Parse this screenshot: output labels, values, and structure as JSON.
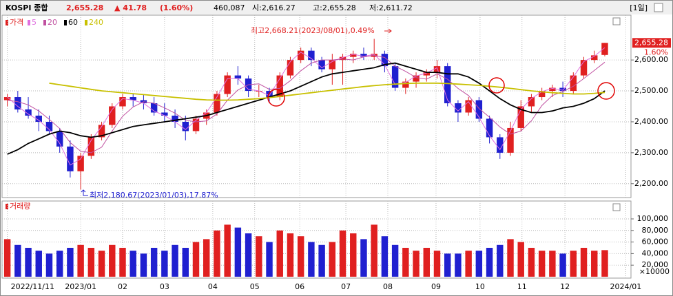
{
  "header": {
    "title": "KOSPI 종합",
    "price": "2,655.28",
    "change": "▲ 41.78",
    "change_pct": "(1.60%)",
    "volume": "460,087",
    "open": "시:2,616.27",
    "high": "고:2,655.28",
    "low": "저:2,611.72",
    "period": "[1일]"
  },
  "chart_data": [
    {
      "type": "candlestick",
      "legend_title": "가격",
      "up_color": "#e02020",
      "down_color": "#2020d0",
      "grid": true,
      "xlim": [
        -0.5,
        59.5
      ],
      "ylim": [
        2155,
        2745
      ],
      "yticks": [
        {
          "value": 2200,
          "label": "2,200.00"
        },
        {
          "value": 2300,
          "label": "2,300.00"
        },
        {
          "value": 2400,
          "label": "2,400.00"
        },
        {
          "value": 2500,
          "label": "2,500.00"
        },
        {
          "value": 2600,
          "label": "2,600.00"
        }
      ],
      "xticks": [
        {
          "value": 0,
          "label": "2022/11/11"
        },
        {
          "value": 7,
          "label": "2023/01"
        },
        {
          "value": 11,
          "label": "02"
        },
        {
          "value": 15,
          "label": "03"
        },
        {
          "value": 19.6,
          "label": "04"
        },
        {
          "value": 23.6,
          "label": "05"
        },
        {
          "value": 27.9,
          "label": "06"
        },
        {
          "value": 32.3,
          "label": "07"
        },
        {
          "value": 36.3,
          "label": "08"
        },
        {
          "value": 40.9,
          "label": "09"
        },
        {
          "value": 45.1,
          "label": "10"
        },
        {
          "value": 49.1,
          "label": "11"
        },
        {
          "value": 53.2,
          "label": "12"
        },
        {
          "value": 59,
          "label": "2024/01"
        }
      ],
      "annotations": {
        "high": "최고2,668.21(2023/08/01),0.49%",
        "low": "최저2,180.67(2023/01/03),17.87%"
      },
      "last_label": "2,655.28",
      "last_change": "1.60%",
      "open": [
        2470,
        2480,
        2440,
        2420,
        2400,
        2370,
        2320,
        2240,
        2290,
        2350,
        2390,
        2450,
        2480,
        2470,
        2460,
        2430,
        2420,
        2400,
        2370,
        2410,
        2430,
        2490,
        2550,
        2540,
        2500,
        2500,
        2480,
        2550,
        2600,
        2630,
        2600,
        2570,
        2600,
        2610,
        2620,
        2610,
        2620,
        2580,
        2510,
        2530,
        2550,
        2560,
        2580,
        2460,
        2430,
        2470,
        2410,
        2350,
        2300,
        2380,
        2450,
        2480,
        2500,
        2510,
        2500,
        2550,
        2600,
        2616.27
      ],
      "high": [
        2490,
        2500,
        2480,
        2440,
        2420,
        2380,
        2340,
        2300,
        2360,
        2400,
        2460,
        2490,
        2490,
        2490,
        2480,
        2460,
        2440,
        2420,
        2420,
        2440,
        2500,
        2560,
        2580,
        2550,
        2520,
        2510,
        2560,
        2610,
        2640,
        2640,
        2610,
        2620,
        2620,
        2630,
        2640,
        2668.21,
        2630,
        2590,
        2540,
        2560,
        2570,
        2600,
        2590,
        2470,
        2480,
        2480,
        2420,
        2360,
        2400,
        2470,
        2490,
        2510,
        2520,
        2530,
        2560,
        2610,
        2630,
        2655.28
      ],
      "low": [
        2450,
        2430,
        2410,
        2370,
        2360,
        2300,
        2220,
        2180.67,
        2280,
        2340,
        2380,
        2440,
        2450,
        2440,
        2420,
        2400,
        2380,
        2340,
        2360,
        2390,
        2420,
        2480,
        2520,
        2480,
        2480,
        2460,
        2470,
        2540,
        2590,
        2580,
        2560,
        2520,
        2520,
        2590,
        2600,
        2600,
        2560,
        2500,
        2490,
        2510,
        2530,
        2540,
        2450,
        2400,
        2420,
        2400,
        2330,
        2280,
        2290,
        2370,
        2430,
        2470,
        2480,
        2480,
        2490,
        2540,
        2590,
        2611.72
      ],
      "close": [
        2480,
        2440,
        2420,
        2400,
        2370,
        2320,
        2240,
        2290,
        2350,
        2390,
        2450,
        2480,
        2470,
        2460,
        2430,
        2420,
        2400,
        2370,
        2410,
        2430,
        2490,
        2550,
        2540,
        2500,
        2500,
        2480,
        2550,
        2600,
        2630,
        2600,
        2570,
        2600,
        2610,
        2620,
        2610,
        2620,
        2580,
        2510,
        2530,
        2550,
        2560,
        2580,
        2460,
        2430,
        2470,
        2410,
        2350,
        2300,
        2380,
        2450,
        2480,
        2500,
        2510,
        2500,
        2550,
        2600,
        2615,
        2655.28
      ],
      "series": [
        {
          "name": "5",
          "color": "#e070e0",
          "values": [
            2480,
            2450,
            2425,
            2405,
            2375,
            2330,
            2260,
            2280,
            2340,
            2385,
            2440,
            2475,
            2470,
            2460,
            2435,
            2420,
            2400,
            2375,
            2405,
            2430,
            2480,
            2540,
            2540,
            2505,
            2500,
            2485,
            2540,
            2595,
            2625,
            2605,
            2575,
            2595,
            2608,
            2618,
            2612,
            2618,
            2585,
            2520,
            2528,
            2548,
            2558,
            2575,
            2470,
            2435,
            2465,
            2415,
            2355,
            2310,
            2370,
            2440,
            2475,
            2498,
            2508,
            2502,
            2545,
            2595,
            2612,
            2640
          ]
        },
        {
          "name": "20",
          "color": "#c050a0",
          "values": [
            2470,
            2465,
            2455,
            2435,
            2408,
            2378,
            2333,
            2305,
            2300,
            2318,
            2370,
            2418,
            2448,
            2465,
            2460,
            2445,
            2428,
            2405,
            2400,
            2403,
            2425,
            2470,
            2503,
            2520,
            2523,
            2505,
            2508,
            2533,
            2565,
            2590,
            2600,
            2600,
            2603,
            2600,
            2610,
            2615,
            2608,
            2580,
            2563,
            2543,
            2538,
            2555,
            2538,
            2508,
            2485,
            2443,
            2415,
            2383,
            2360,
            2370,
            2403,
            2453,
            2485,
            2498,
            2515,
            2540,
            2566,
            2593
          ]
        },
        {
          "name": "60",
          "color": "#000000",
          "values": [
            2295,
            2310,
            2330,
            2345,
            2360,
            2370,
            2365,
            2355,
            2350,
            2355,
            2365,
            2375,
            2385,
            2390,
            2395,
            2400,
            2405,
            2410,
            2415,
            2420,
            2430,
            2440,
            2450,
            2460,
            2470,
            2480,
            2490,
            2500,
            2515,
            2530,
            2545,
            2555,
            2560,
            2565,
            2570,
            2575,
            2585,
            2590,
            2580,
            2570,
            2560,
            2560,
            2555,
            2555,
            2545,
            2525,
            2500,
            2475,
            2455,
            2440,
            2430,
            2430,
            2435,
            2445,
            2450,
            2460,
            2475,
            2500
          ]
        },
        {
          "name": "240",
          "color": "#c8c000",
          "values": [
            null,
            null,
            null,
            null,
            2525,
            2520,
            2515,
            2510,
            2505,
            2500,
            2497,
            2494,
            2491,
            2488,
            2485,
            2482,
            2479,
            2476,
            2473,
            2471,
            2470,
            2470,
            2471,
            2473,
            2475,
            2478,
            2482,
            2486,
            2490,
            2494,
            2498,
            2502,
            2506,
            2510,
            2514,
            2517,
            2520,
            2522,
            2524,
            2525,
            2525,
            2525,
            2524,
            2522,
            2520,
            2518,
            2515,
            2512,
            2508,
            2504,
            2500,
            2497,
            2494,
            2492,
            2490,
            2490,
            2492,
            2495
          ]
        }
      ]
    },
    {
      "type": "bar",
      "title": "거래량",
      "y_unit": "×10000",
      "grid": true,
      "ylim": [
        0,
        125000
      ],
      "yticks": [
        {
          "value": 20000,
          "label": "20,000"
        },
        {
          "value": 40000,
          "label": "40,000"
        },
        {
          "value": 60000,
          "label": "60,000"
        },
        {
          "value": 80000,
          "label": "80,000"
        },
        {
          "value": 100000,
          "label": "100,000"
        }
      ],
      "values": [
        65000,
        55000,
        50000,
        45000,
        40000,
        45000,
        50000,
        55000,
        50000,
        45000,
        55000,
        50000,
        45000,
        40000,
        50000,
        45000,
        55000,
        50000,
        60000,
        65000,
        80000,
        90000,
        85000,
        75000,
        70000,
        60000,
        80000,
        75000,
        70000,
        60000,
        55000,
        60000,
        80000,
        75000,
        65000,
        90000,
        70000,
        55000,
        50000,
        45000,
        50000,
        45000,
        40000,
        40000,
        45000,
        45000,
        50000,
        55000,
        65000,
        60000,
        50000,
        45000,
        45000,
        40000,
        45000,
        50000,
        45000,
        46000
      ]
    }
  ]
}
